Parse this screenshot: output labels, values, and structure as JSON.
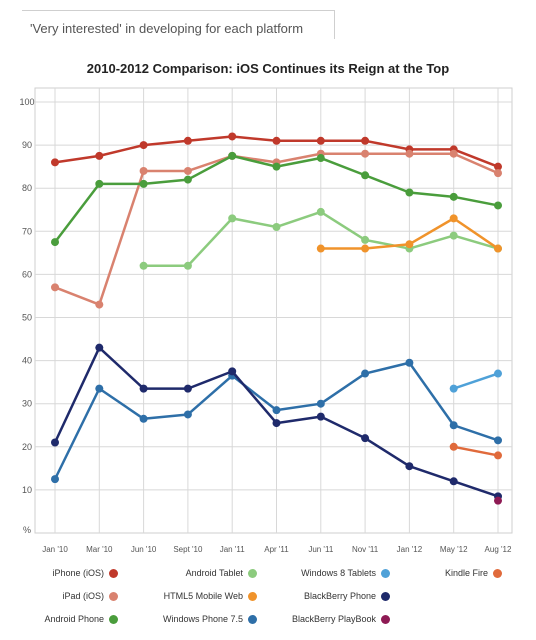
{
  "header": {
    "subtitle": "'Very interested' in developing for each platform"
  },
  "chart_data": {
    "type": "line",
    "title": "2010-2012 Comparison: iOS Continues its Reign at the Top",
    "ylabel": "%",
    "ylim": [
      0,
      100
    ],
    "yticks": [
      10,
      20,
      30,
      40,
      50,
      60,
      70,
      80,
      90,
      100
    ],
    "grid": true,
    "legend_position": "bottom",
    "categories": [
      "Jan '10",
      "Mar '10",
      "Jun '10",
      "Sept '10",
      "Jan '11",
      "Apr '11",
      "Jun '11",
      "Nov '11",
      "Jan '12",
      "May '12",
      "Aug '12"
    ],
    "series": [
      {
        "name": "iPhone (iOS)",
        "color": "#c0392b",
        "values": [
          86,
          87.5,
          90,
          91,
          92,
          91,
          91,
          91,
          89,
          89,
          85
        ]
      },
      {
        "name": "iPad (iOS)",
        "color": "#d9826f",
        "values": [
          57,
          53,
          84,
          84,
          87.5,
          86,
          88,
          88,
          88,
          88,
          83.5
        ]
      },
      {
        "name": "Android Phone",
        "color": "#4a9d3c",
        "values": [
          67.5,
          81,
          81,
          82,
          87.5,
          85,
          87,
          83,
          79,
          78,
          76
        ]
      },
      {
        "name": "Android Tablet",
        "color": "#8ccb7e",
        "values": [
          null,
          null,
          62,
          62,
          73,
          71,
          74.5,
          68,
          66,
          69,
          66
        ]
      },
      {
        "name": "HTML5 Mobile Web",
        "color": "#f0932b",
        "values": [
          null,
          null,
          null,
          null,
          null,
          null,
          66,
          66,
          67,
          73,
          66
        ]
      },
      {
        "name": "Windows Phone 7.5",
        "color": "#2e6fa8",
        "values": [
          12.5,
          33.5,
          26.5,
          27.5,
          36.5,
          28.5,
          30,
          37,
          39.5,
          25,
          21.5
        ]
      },
      {
        "name": "BlackBerry Phone",
        "color": "#1f2a6b",
        "values": [
          21,
          43,
          33.5,
          33.5,
          37.5,
          25.5,
          27,
          22,
          15.5,
          12,
          8.5
        ]
      },
      {
        "name": "Windows 8 Tablets",
        "color": "#4fa1d8",
        "values": [
          null,
          null,
          null,
          null,
          null,
          null,
          null,
          null,
          null,
          33.5,
          37
        ]
      },
      {
        "name": "Kindle Fire",
        "color": "#e06a3b",
        "values": [
          null,
          null,
          null,
          null,
          null,
          null,
          null,
          null,
          null,
          20,
          18
        ]
      },
      {
        "name": "BlackBerry PlayBook",
        "color": "#8e1a54",
        "values": [
          null,
          null,
          null,
          null,
          null,
          null,
          null,
          null,
          null,
          null,
          7.5
        ]
      }
    ],
    "legend_order": [
      "iPhone (iOS)",
      "Android Tablet",
      "Windows 8 Tablets",
      "Kindle Fire",
      "iPad (iOS)",
      "HTML5 Mobile Web",
      "BlackBerry Phone",
      "Android Phone",
      "Windows Phone 7.5",
      "BlackBerry PlayBook"
    ]
  }
}
